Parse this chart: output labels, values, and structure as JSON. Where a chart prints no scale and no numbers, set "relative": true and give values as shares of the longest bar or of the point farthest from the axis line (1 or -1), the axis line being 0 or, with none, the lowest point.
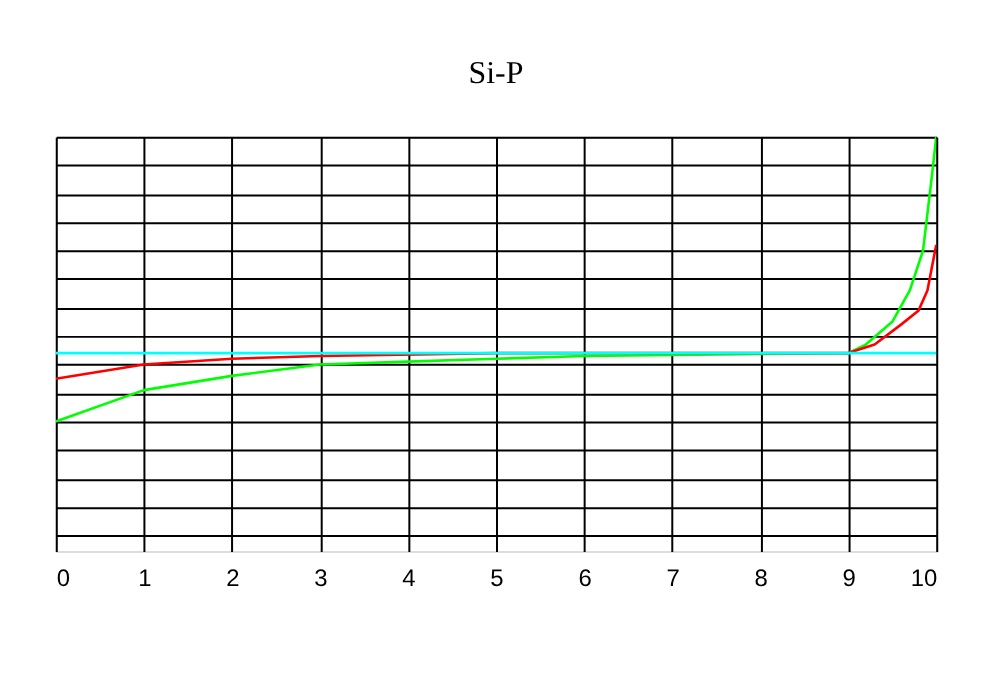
{
  "chart_data": {
    "type": "line",
    "title": "Si-P",
    "relative": true,
    "grid": true,
    "tick_labels": "x",
    "xlim": [
      0,
      10
    ],
    "xticks": [
      0,
      1,
      2,
      3,
      4,
      5,
      6,
      7,
      8,
      9,
      10
    ],
    "series": [
      {
        "color": "#00ff00",
        "x": [
          0,
          1,
          2,
          3,
          4,
          5,
          6,
          9,
          9.2,
          9.5,
          9.7,
          9.85,
          9.95,
          10
        ],
        "values": [
          0,
          0.11,
          0.16,
          0.2,
          0.21,
          0.22,
          0.23,
          0.24,
          0.27,
          0.35,
          0.46,
          0.6,
          0.86,
          1
        ]
      },
      {
        "color": "#ff0000",
        "x": [
          0,
          1,
          2,
          3,
          5,
          9,
          9.3,
          9.6,
          9.8,
          9.9,
          10
        ],
        "values": [
          0.15,
          0.2,
          0.22,
          0.23,
          0.24,
          0.24,
          0.27,
          0.34,
          0.39,
          0.46,
          0.62
        ]
      },
      {
        "color": "#00ffff",
        "x": [
          0,
          10
        ],
        "values": [
          0.24,
          0.24
        ]
      }
    ]
  }
}
